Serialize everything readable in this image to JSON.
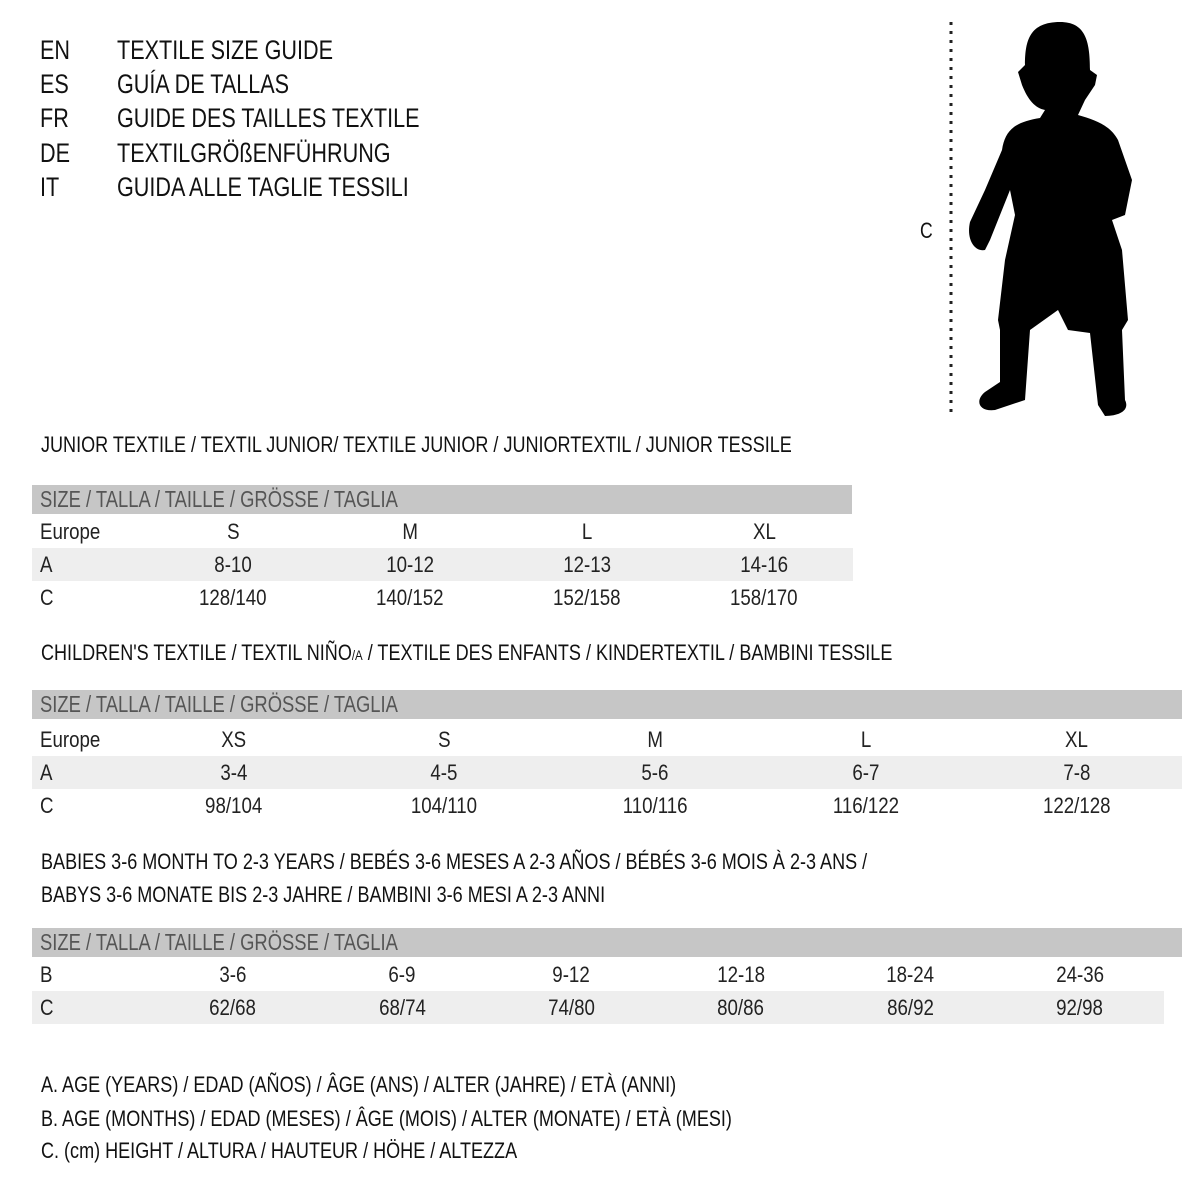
{
  "languages": [
    {
      "code": "EN",
      "title": "TEXTILE SIZE GUIDE"
    },
    {
      "code": "ES",
      "title": "GUÍA DE TALLAS"
    },
    {
      "code": "FR",
      "title": "GUIDE DES TAILLES TEXTILE"
    },
    {
      "code": "DE",
      "title": "TEXTILGRÖßENFÜHRUNG"
    },
    {
      "code": "IT",
      "title": "GUIDA ALLE TAGLIE TESSILI"
    }
  ],
  "figure": {
    "measure_label": "C"
  },
  "size_band_label": "SIZE / TALLA / TAILLE / GRÖSSE / TAGLIA",
  "junior": {
    "title": "JUNIOR TEXTILE / TEXTIL JUNIOR/ TEXTILE JUNIOR / JUNIORTEXTIL / JUNIOR TESSILE",
    "rows": [
      {
        "label": "Europe",
        "values": [
          "S",
          "M",
          "L",
          "XL"
        ],
        "shaded": false
      },
      {
        "label": "A",
        "values": [
          "8-10",
          "10-12",
          "12-13",
          "14-16"
        ],
        "shaded": true
      },
      {
        "label": "C",
        "values": [
          "128/140",
          "140/152",
          "152/158",
          "158/170"
        ],
        "shaded": false
      }
    ]
  },
  "children": {
    "title_pre": "CHILDREN'S TEXTILE / TEXTIL NIÑO",
    "title_sub": "/A",
    "title_post": " / TEXTILE DES ENFANTS / KINDERTEXTIL / BAMBINI TESSILE",
    "rows": [
      {
        "label": "Europe",
        "values": [
          "XS",
          "S",
          "M",
          "L",
          "XL"
        ],
        "shaded": false
      },
      {
        "label": "A",
        "values": [
          "3-4",
          "4-5",
          "5-6",
          "6-7",
          "7-8"
        ],
        "shaded": true
      },
      {
        "label": "C",
        "values": [
          "98/104",
          "104/110",
          "110/116",
          "116/122",
          "122/128"
        ],
        "shaded": false
      }
    ]
  },
  "babies": {
    "title_line1": "BABIES 3-6 MONTH TO 2-3 YEARS / BEBÉS 3-6 MESES A 2-3 AÑOS / BÉBÉS 3-6 MOIS À 2-3 ANS /",
    "title_line2": "BABYS 3-6 MONATE BIS 2-3 JAHRE / BAMBINI 3-6 MESI A 2-3 ANNI",
    "rows": [
      {
        "label": "B",
        "values": [
          "3-6",
          "6-9",
          "9-12",
          "12-18",
          "18-24",
          "24-36"
        ],
        "shaded": false
      },
      {
        "label": "C",
        "values": [
          "62/68",
          "68/74",
          "74/80",
          "80/86",
          "86/92",
          "92/98"
        ],
        "shaded": true
      }
    ]
  },
  "legend": [
    "A. AGE (YEARS) / EDAD (AÑOS) / ÂGE (ANS) / ALTER (JAHRE) / ETÀ (ANNI)",
    "B. AGE (MONTHS) / EDAD (MESES) / ÂGE (MOIS) / ALTER (MONATE) / ETÀ (MESI)",
    "C. (cm) HEIGHT / ALTURA / HAUTEUR / HÖHE / ALTEZZA"
  ],
  "colors": {
    "band": "#c6c6c6",
    "band_text": "#555555",
    "shaded_row": "#eeeeee",
    "silhouette": "#000000"
  }
}
